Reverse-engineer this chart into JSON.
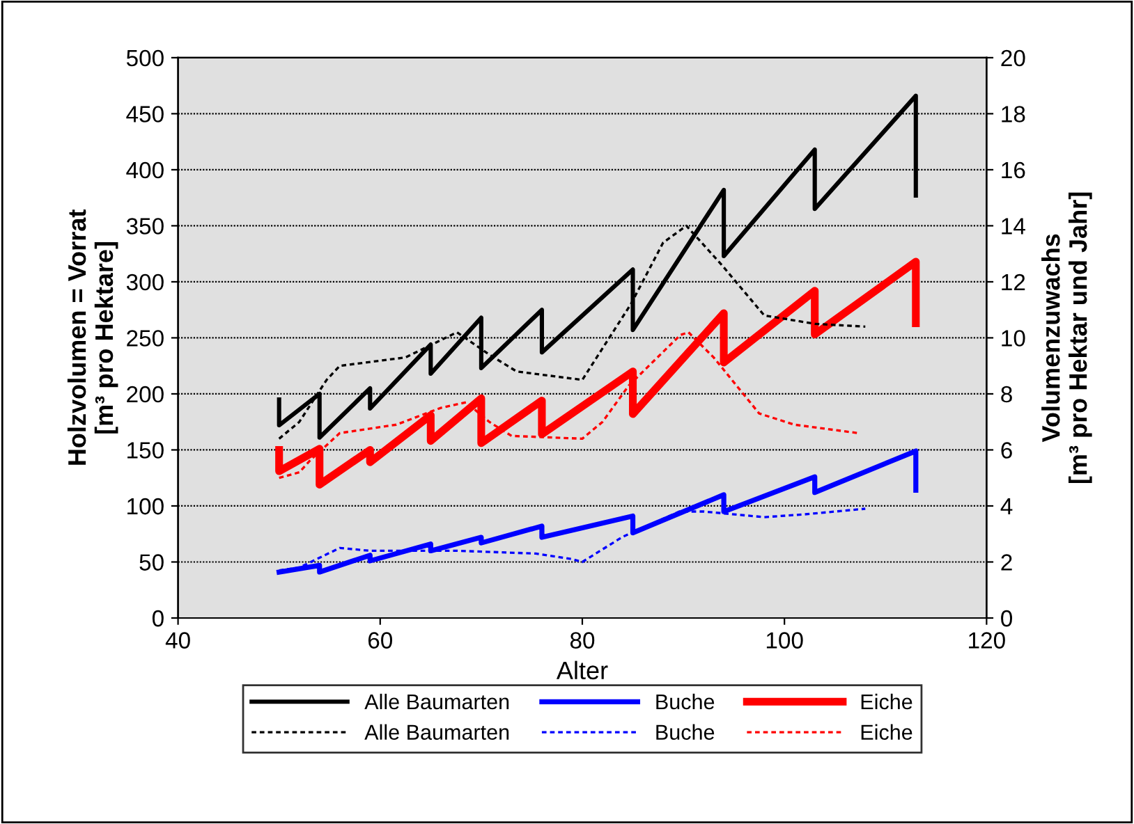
{
  "chart_data": {
    "type": "line",
    "xlabel": "Alter",
    "ylabel": "Holzvolumen = Vorrat\n[m³ pro Hektare]",
    "y2label": "Volumenzuwachs\n[m³ pro Hektar und Jahr]",
    "xlim": [
      40,
      120
    ],
    "xticks": [
      40,
      60,
      80,
      100,
      120
    ],
    "ylim": [
      0,
      500
    ],
    "yticks": [
      0,
      50,
      100,
      150,
      200,
      250,
      300,
      350,
      400,
      450,
      500
    ],
    "y2lim": [
      0,
      20
    ],
    "y2ticks": [
      0,
      2,
      4,
      6,
      8,
      10,
      12,
      14,
      16,
      18,
      20
    ],
    "grid": "y",
    "legend": "bottom",
    "marker": "none",
    "series": [
      {
        "name": "Alle Baumarten",
        "color": "#000000",
        "line_style": "solid",
        "x": [
          50,
          50,
          54,
          54,
          59,
          59,
          65,
          65,
          70,
          70,
          76,
          76,
          85,
          85,
          94,
          94,
          103,
          103,
          113,
          113
        ],
        "values": [
          195,
          172,
          200,
          161,
          205,
          187,
          244,
          218,
          268,
          223,
          275,
          237,
          311,
          257,
          382,
          323,
          418,
          365,
          466,
          377
        ]
      },
      {
        "name": "Alle Baumarten",
        "color": "#000000",
        "line_style": "dashed",
        "axis": "y2",
        "x": [
          50,
          52,
          54.7,
          56,
          62.5,
          67.6,
          70.8,
          73.5,
          80,
          84.8,
          88,
          90.3,
          93.8,
          98,
          103,
          108
        ],
        "values": [
          6.4,
          7.0,
          8.5,
          9.0,
          9.3,
          10.2,
          9.4,
          8.8,
          8.5,
          11.2,
          13.4,
          14.0,
          12.6,
          10.8,
          10.5,
          10.4
        ]
      },
      {
        "name": "Buche",
        "color": "#0000ff",
        "line_style": "solid",
        "x": [
          50,
          50,
          54,
          54,
          59,
          59,
          65,
          65,
          70,
          70,
          76,
          76,
          85,
          85,
          94,
          94,
          103,
          103,
          113,
          113
        ],
        "values": [
          41,
          41,
          47,
          41,
          56,
          51,
          66,
          60,
          72,
          67,
          82,
          72,
          91,
          76,
          110,
          95,
          126,
          112,
          149,
          114
        ]
      },
      {
        "name": "Buche",
        "color": "#0000ff",
        "line_style": "dashed",
        "axis": "y2",
        "x": [
          50,
          52,
          56,
          59,
          67.6,
          75.4,
          79,
          80,
          84,
          89.6,
          92,
          98,
          102,
          108
        ],
        "values": [
          1.7,
          1.8,
          2.5,
          2.4,
          2.4,
          2.3,
          2.1,
          2.0,
          2.9,
          3.8,
          3.8,
          3.6,
          3.7,
          3.9
        ]
      },
      {
        "name": "Eiche",
        "color": "#ff0000",
        "line_style": "solid",
        "x": [
          50,
          50,
          54,
          54,
          59,
          59,
          65,
          65,
          70,
          70,
          76,
          76,
          85,
          85,
          94,
          94,
          103,
          103,
          113,
          113
        ],
        "values": [
          150,
          131,
          151,
          119,
          150,
          139,
          181,
          158,
          196,
          156,
          194,
          164,
          220,
          182,
          272,
          228,
          292,
          253,
          318,
          263
        ]
      },
      {
        "name": "Eiche",
        "color": "#ff0000",
        "line_style": "dashed",
        "axis": "y2",
        "x": [
          50,
          52,
          53,
          56,
          61.6,
          66,
          68.5,
          70.8,
          73,
          80,
          82,
          84.6,
          89.7,
          90.5,
          93,
          97.5,
          101,
          107.3
        ],
        "values": [
          5.0,
          5.2,
          5.6,
          6.6,
          6.9,
          7.5,
          7.7,
          7.0,
          6.5,
          6.4,
          7.0,
          8.3,
          10.1,
          10.2,
          9.3,
          7.3,
          6.9,
          6.6
        ]
      }
    ]
  }
}
